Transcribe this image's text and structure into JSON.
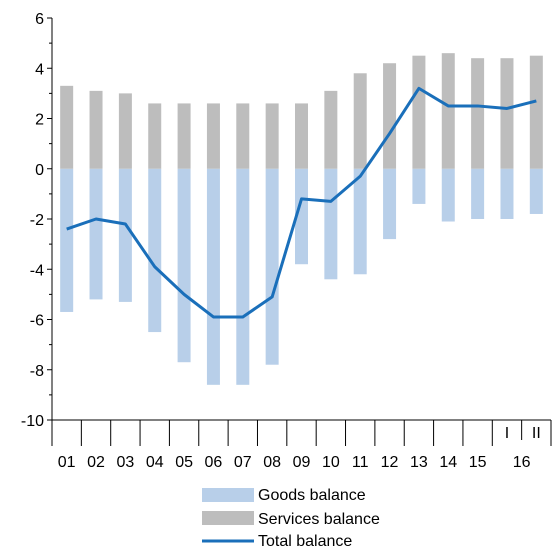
{
  "chart_data": {
    "type": "bar",
    "categories": [
      "01",
      "02",
      "03",
      "04",
      "05",
      "06",
      "07",
      "08",
      "09",
      "10",
      "11",
      "12",
      "13",
      "14",
      "15",
      "I",
      "II"
    ],
    "year_group_labels": [
      {
        "text": "16",
        "covers": [
          "I",
          "II"
        ]
      }
    ],
    "series": [
      {
        "name": "Goods balance",
        "kind": "bar",
        "color": "#b8cfe9",
        "values": [
          -5.7,
          -5.2,
          -5.3,
          -6.5,
          -7.7,
          -8.6,
          -8.6,
          -7.8,
          -3.8,
          -4.4,
          -4.2,
          -2.8,
          -1.4,
          -2.1,
          -2.0,
          -2.0,
          -1.8
        ]
      },
      {
        "name": "Services balance",
        "kind": "bar",
        "color": "#bdbdbd",
        "values": [
          3.3,
          3.1,
          3.0,
          2.6,
          2.6,
          2.6,
          2.6,
          2.6,
          2.6,
          3.1,
          3.8,
          4.2,
          4.5,
          4.6,
          4.4,
          4.4,
          4.5
        ]
      },
      {
        "name": "Total balance",
        "kind": "line",
        "color": "#1a6fba",
        "values": [
          -2.4,
          -2.0,
          -2.2,
          -3.9,
          -5.0,
          -5.9,
          -5.9,
          -5.1,
          -1.2,
          -1.3,
          -0.3,
          1.4,
          3.2,
          2.5,
          2.5,
          2.4,
          2.7
        ]
      }
    ],
    "ylim": [
      -10,
      6
    ],
    "yticks": [
      "6",
      "4",
      "2",
      "0",
      "-2",
      "-4",
      "-6",
      "-8",
      "-10"
    ],
    "legend_position": "bottom-center",
    "grid": false
  }
}
